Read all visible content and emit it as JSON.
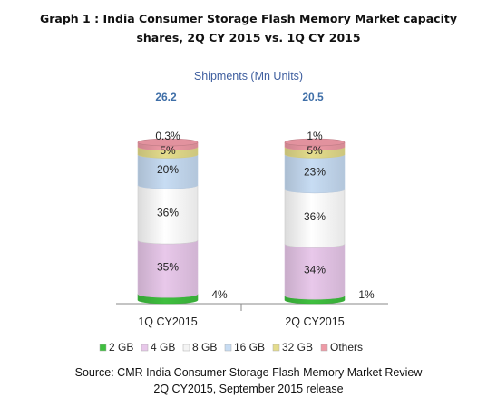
{
  "title_line1": "Graph 1 : India Consumer Storage Flash Memory Market capacity",
  "title_line2": "shares, 2Q CY 2015 vs. 1Q CY 2015",
  "source_line1": "Source: CMR India Consumer Storage Flash Memory Market Review",
  "source_line2": "2Q CY2015, September 2015 release",
  "chart_data": {
    "type": "bar",
    "subtitle": "Shipments (Mn Units)",
    "categories": [
      "1Q CY2015",
      "2Q CY2015"
    ],
    "totals": [
      "26.2",
      "20.5"
    ],
    "series": [
      {
        "name": "2 GB",
        "color": "#3fbf3f",
        "values": [
          4,
          1
        ],
        "labels": [
          "4%",
          "1%"
        ]
      },
      {
        "name": "4 GB",
        "color": "#e8c8ea",
        "values": [
          35,
          34
        ],
        "labels": [
          "35%",
          "34%"
        ]
      },
      {
        "name": "8 GB",
        "color": "#ffffff",
        "values": [
          36,
          36
        ],
        "labels": [
          "36%",
          "36%"
        ]
      },
      {
        "name": "16 GB",
        "color": "#c7dcf3",
        "values": [
          20,
          23
        ],
        "labels": [
          "20%",
          "23%"
        ]
      },
      {
        "name": "32 GB",
        "color": "#e4dc8c",
        "values": [
          5,
          5
        ],
        "labels": [
          "5%",
          "5%"
        ]
      },
      {
        "name": "Others",
        "color": "#ee9aa6",
        "values": [
          0.3,
          1
        ],
        "labels": [
          "0.3%",
          "1%"
        ]
      }
    ],
    "ylim": [
      0,
      100
    ],
    "legend_position": "bottom",
    "grid": false
  }
}
